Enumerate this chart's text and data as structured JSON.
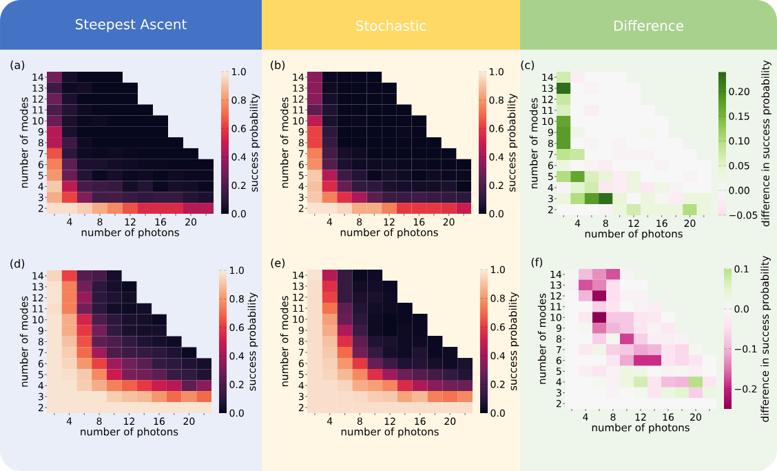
{
  "chart_data": [
    {
      "type": "heatmap",
      "title": "Steepest Ascent",
      "annotations": [
        "(a)"
      ],
      "xlabel": "number of photons",
      "ylabel": "number of modes",
      "clabel": "success probability",
      "categories": [
        null,
        "4",
        null,
        "8",
        null,
        "12",
        null,
        "16",
        null,
        "20",
        null
      ],
      "y_categories": [
        "14",
        "13",
        "12",
        "11",
        "10",
        "9",
        "8",
        "7",
        "6",
        "5",
        "4",
        "3",
        "2"
      ],
      "cells": [
        [
          0.3,
          0.05,
          0.01,
          0.01,
          0.01,
          null,
          null,
          null,
          null,
          null,
          null
        ],
        [
          0.15,
          0.03,
          0.04,
          0.01,
          0.01,
          0.01,
          null,
          null,
          null,
          null,
          null
        ],
        [
          0.28,
          0.06,
          0.01,
          0.01,
          0.01,
          0.01,
          null,
          null,
          null,
          null,
          null
        ],
        [
          0.2,
          0.08,
          0.03,
          0.01,
          0.01,
          0.01,
          0.01,
          null,
          null,
          null,
          null
        ],
        [
          0.27,
          0.06,
          0.02,
          0.03,
          0.01,
          0.01,
          0.01,
          0.01,
          null,
          null,
          null
        ],
        [
          0.45,
          0.06,
          0.01,
          0.01,
          0.01,
          0.01,
          0.01,
          0.01,
          null,
          null,
          null
        ],
        [
          0.45,
          0.15,
          0.03,
          0.01,
          0.01,
          0.01,
          0.01,
          0.01,
          0.01,
          null,
          null
        ],
        [
          0.65,
          0.1,
          0.03,
          0.02,
          0.03,
          0.02,
          0.01,
          0.01,
          0.01,
          0.01,
          null
        ],
        [
          0.75,
          0.25,
          0.06,
          0.06,
          0.04,
          0.03,
          0.02,
          0.02,
          0.01,
          0.01,
          0.01
        ],
        [
          0.8,
          0.27,
          0.08,
          0.02,
          0.05,
          0.02,
          0.03,
          0.01,
          0.03,
          0.02,
          0.02
        ],
        [
          0.92,
          0.47,
          0.18,
          0.15,
          0.13,
          0.04,
          0.08,
          0.02,
          0.05,
          0.04,
          0.02
        ],
        [
          0.85,
          0.62,
          0.33,
          0.17,
          0.18,
          0.14,
          0.11,
          0.13,
          0.13,
          0.08,
          0.06
        ],
        [
          0.97,
          0.97,
          0.93,
          0.85,
          0.77,
          0.65,
          0.55,
          0.55,
          0.55,
          0.45,
          0.45
        ]
      ],
      "clim": [
        0,
        1
      ],
      "cticks": [
        {
          "value": 0,
          "label": "0.0"
        },
        {
          "value": 0.2,
          "label": "0.2"
        },
        {
          "value": 0.4,
          "label": "0.4"
        },
        {
          "value": 0.6,
          "label": "0.6"
        },
        {
          "value": 0.8,
          "label": "0.8"
        },
        {
          "value": 1,
          "label": "1.0"
        }
      ]
    },
    {
      "type": "heatmap",
      "title": "Stochastic",
      "annotations": [
        "(b)"
      ],
      "xlabel": "number of photons",
      "ylabel": "number of modes",
      "clabel": "success probability",
      "categories": [
        null,
        "4",
        null,
        "8",
        null,
        "12",
        null,
        "16",
        null,
        "20",
        null
      ],
      "y_categories": [
        "14",
        "13",
        "12",
        "11",
        "10",
        "9",
        "8",
        "7",
        "6",
        "5",
        "4",
        "3",
        "2"
      ],
      "cells": [
        [
          0.35,
          0.02,
          0.01,
          0.01,
          0.01,
          null,
          null,
          null,
          null,
          null,
          null
        ],
        [
          0.35,
          0.03,
          0.01,
          0.01,
          0.01,
          0.01,
          null,
          null,
          null,
          null,
          null
        ],
        [
          0.35,
          0.05,
          0.01,
          0.01,
          0.01,
          0.01,
          null,
          null,
          null,
          null,
          null
        ],
        [
          0.25,
          0.07,
          0.01,
          0.01,
          0.01,
          0.01,
          0.01,
          null,
          null,
          null,
          null
        ],
        [
          0.47,
          0.06,
          0.01,
          0.02,
          0.01,
          0.01,
          0.01,
          0.01,
          null,
          null,
          null
        ],
        [
          0.62,
          0.1,
          0.01,
          0.01,
          0.01,
          0.01,
          0.02,
          0.01,
          null,
          null,
          null
        ],
        [
          0.62,
          0.13,
          0.01,
          0.01,
          0.01,
          0.01,
          0.01,
          0.01,
          0.01,
          null,
          null
        ],
        [
          0.75,
          0.17,
          0.05,
          0.03,
          0.01,
          0.01,
          0.01,
          0.01,
          0.01,
          0.01,
          null
        ],
        [
          0.78,
          0.22,
          0.06,
          0.03,
          0.03,
          0.03,
          0.02,
          0.02,
          0.01,
          0.01,
          0.01
        ],
        [
          0.92,
          0.45,
          0.15,
          0.08,
          0.02,
          0.05,
          0.03,
          0.01,
          0.03,
          0.02,
          0.02
        ],
        [
          0.9,
          0.55,
          0.27,
          0.12,
          0.1,
          0.06,
          0.05,
          0.04,
          0.04,
          0.06,
          0.01
        ],
        [
          0.92,
          0.75,
          0.57,
          0.42,
          0.24,
          0.15,
          0.14,
          0.16,
          0.14,
          0.12,
          0.1
        ],
        [
          0.98,
          0.98,
          0.95,
          0.85,
          0.85,
          0.75,
          0.6,
          0.6,
          0.6,
          0.58,
          0.5
        ]
      ],
      "clim": [
        0,
        1
      ],
      "cticks": [
        {
          "value": 0,
          "label": "0.0"
        },
        {
          "value": 0.2,
          "label": "0.2"
        },
        {
          "value": 0.4,
          "label": "0.4"
        },
        {
          "value": 0.6,
          "label": "0.6"
        },
        {
          "value": 0.8,
          "label": "0.8"
        },
        {
          "value": 1,
          "label": "1.0"
        }
      ]
    },
    {
      "type": "heatmap",
      "title": "Difference",
      "annotations": [
        "(c)"
      ],
      "xlabel": "number of photons",
      "ylabel": "number of modes",
      "clabel": "difference in success probability",
      "categories": [
        null,
        "4",
        null,
        "8",
        null,
        "12",
        null,
        "16",
        null,
        "20",
        null
      ],
      "y_categories": [
        "14",
        "13",
        "12",
        "11",
        "10",
        "9",
        "8",
        "7",
        "6",
        "5",
        "4",
        "3",
        "2"
      ],
      "cells": [
        [
          0.07,
          -0.02,
          0.0,
          0.0,
          0.0,
          null,
          null,
          null,
          null,
          null,
          null
        ],
        [
          0.23,
          0.0,
          -0.01,
          0.0,
          0.0,
          0.0,
          null,
          null,
          null,
          null,
          null
        ],
        [
          0.08,
          0.0,
          0.0,
          0.0,
          0.0,
          0.0,
          null,
          null,
          null,
          null,
          null
        ],
        [
          0.06,
          0.0,
          -0.02,
          0.0,
          0.0,
          0.0,
          0.0,
          null,
          null,
          null,
          null
        ],
        [
          0.17,
          0.0,
          0.0,
          0.0,
          0.0,
          0.0,
          0.0,
          0.0,
          null,
          null,
          null
        ],
        [
          0.18,
          0.02,
          0.0,
          0.0,
          0.0,
          0.0,
          0.01,
          0.0,
          null,
          null,
          null
        ],
        [
          0.18,
          0.0,
          -0.01,
          0.0,
          -0.01,
          0.0,
          0.0,
          0.0,
          0.0,
          null,
          null
        ],
        [
          0.09,
          0.08,
          0.0,
          0.0,
          -0.01,
          -0.01,
          -0.01,
          0.0,
          0.0,
          0.0,
          null
        ],
        [
          0.03,
          0.0,
          -0.01,
          -0.02,
          0.0,
          0.0,
          0.0,
          -0.01,
          0.0,
          0.0,
          0.0
        ],
        [
          0.1,
          0.17,
          0.06,
          0.04,
          -0.02,
          0.03,
          0.0,
          0.0,
          0.0,
          -0.01,
          0.0
        ],
        [
          -0.01,
          0.05,
          0.07,
          -0.03,
          -0.02,
          0.03,
          -0.03,
          0.02,
          -0.01,
          0.0,
          0.0
        ],
        [
          0.03,
          0.1,
          0.18,
          0.23,
          0.04,
          0.0,
          0.03,
          0.01,
          -0.02,
          0.03,
          0.03
        ],
        [
          0.0,
          0.0,
          0.0,
          -0.01,
          0.03,
          0.07,
          0.03,
          0.03,
          0.03,
          0.1,
          0.03
        ]
      ],
      "clim": [
        -0.05,
        0.24
      ],
      "cticks": [
        {
          "value": -0.05,
          "label": "−0.05"
        },
        {
          "value": 0,
          "label": "0.00"
        },
        {
          "value": 0.05,
          "label": "0.05"
        },
        {
          "value": 0.1,
          "label": "0.10"
        },
        {
          "value": 0.15,
          "label": "0.15"
        },
        {
          "value": 0.2,
          "label": "0.20"
        }
      ]
    },
    {
      "type": "heatmap",
      "annotations": [
        "(d)"
      ],
      "xlabel": "number of photons",
      "ylabel": "number of modes",
      "clabel": "success probability",
      "categories": [
        null,
        "4",
        null,
        "8",
        null,
        "12",
        null,
        "16",
        null,
        "20",
        null
      ],
      "y_categories": [
        "14",
        "13",
        "12",
        "11",
        "10",
        "9",
        "8",
        "7",
        "6",
        "5",
        "4",
        "3",
        "2"
      ],
      "cells": [
        [
          0.95,
          0.62,
          0.22,
          0.18,
          0.05,
          null,
          null,
          null,
          null,
          null,
          null
        ],
        [
          0.98,
          0.75,
          0.3,
          0.1,
          0.05,
          0.02,
          null,
          null,
          null,
          null,
          null
        ],
        [
          0.98,
          0.75,
          0.37,
          0.1,
          0.07,
          0.04,
          null,
          null,
          null,
          null,
          null
        ],
        [
          0.97,
          0.75,
          0.3,
          0.1,
          0.04,
          0.03,
          0.04,
          null,
          null,
          null,
          null
        ],
        [
          0.98,
          0.85,
          0.53,
          0.2,
          0.1,
          0.06,
          0.05,
          0.02,
          null,
          null,
          null
        ],
        [
          0.98,
          0.85,
          0.6,
          0.3,
          0.12,
          0.06,
          0.05,
          0.05,
          null,
          null,
          null
        ],
        [
          0.98,
          0.9,
          0.65,
          0.25,
          0.2,
          0.12,
          0.07,
          0.05,
          0.03,
          null,
          null
        ],
        [
          0.98,
          0.93,
          0.7,
          0.4,
          0.2,
          0.15,
          0.13,
          0.1,
          0.07,
          0.02,
          null
        ],
        [
          0.98,
          0.95,
          0.8,
          0.62,
          0.4,
          0.3,
          0.24,
          0.13,
          0.1,
          0.07,
          0.05
        ],
        [
          0.98,
          0.97,
          0.92,
          0.77,
          0.5,
          0.32,
          0.3,
          0.24,
          0.14,
          0.12,
          0.07
        ],
        [
          0.98,
          0.98,
          0.93,
          0.85,
          0.75,
          0.68,
          0.6,
          0.5,
          0.45,
          0.25,
          0.35
        ],
        [
          0.98,
          0.98,
          0.98,
          0.98,
          0.93,
          0.9,
          0.88,
          0.8,
          0.7,
          0.78,
          0.7
        ],
        [
          0.98,
          0.98,
          0.98,
          0.98,
          0.98,
          0.98,
          0.98,
          0.98,
          0.98,
          0.98,
          0.98
        ]
      ],
      "clim": [
        0,
        1
      ],
      "cticks": [
        {
          "value": 0,
          "label": "0.0"
        },
        {
          "value": 0.2,
          "label": "0.2"
        },
        {
          "value": 0.4,
          "label": "0.4"
        },
        {
          "value": 0.6,
          "label": "0.6"
        },
        {
          "value": 0.8,
          "label": "0.8"
        },
        {
          "value": 1,
          "label": "1.0"
        }
      ]
    },
    {
      "type": "heatmap",
      "annotations": [
        "(e)"
      ],
      "xlabel": "number of photons",
      "ylabel": "number of modes",
      "clabel": "success probability",
      "categories": [
        null,
        "4",
        null,
        "8",
        null,
        "12",
        null,
        "16",
        null,
        "20",
        null
      ],
      "y_categories": [
        "14",
        "13",
        "12",
        "11",
        "10",
        "9",
        "8",
        "7",
        "6",
        "5",
        "4",
        "3",
        "2"
      ],
      "cells": [
        [
          0.98,
          0.45,
          0.13,
          0.02,
          0.03,
          null,
          null,
          null,
          null,
          null,
          null
        ],
        [
          0.97,
          0.57,
          0.13,
          0.04,
          0.04,
          0.02,
          null,
          null,
          null,
          null,
          null
        ],
        [
          0.97,
          0.62,
          0.13,
          0.06,
          0.06,
          0.03,
          null,
          null,
          null,
          null,
          null
        ],
        [
          0.97,
          0.72,
          0.25,
          0.08,
          0.04,
          0.03,
          0.02,
          null,
          null,
          null,
          null
        ],
        [
          0.97,
          0.82,
          0.27,
          0.1,
          0.03,
          0.01,
          0.02,
          0.02,
          null,
          null,
          null
        ],
        [
          0.97,
          0.85,
          0.43,
          0.15,
          0.03,
          0.01,
          0.03,
          0.02,
          null,
          null,
          null
        ],
        [
          0.97,
          0.9,
          0.57,
          0.25,
          0.07,
          0.06,
          0.03,
          0.03,
          0.02,
          null,
          null
        ],
        [
          0.97,
          0.92,
          0.7,
          0.3,
          0.13,
          0.05,
          0.03,
          0.07,
          0.02,
          0.03,
          null
        ],
        [
          0.97,
          0.94,
          0.8,
          0.6,
          0.27,
          0.15,
          0.07,
          0.08,
          0.05,
          0.03,
          0.06
        ],
        [
          0.97,
          0.95,
          0.88,
          0.77,
          0.57,
          0.4,
          0.28,
          0.22,
          0.17,
          0.12,
          0.08
        ],
        [
          0.97,
          0.97,
          0.95,
          0.85,
          0.82,
          0.76,
          0.55,
          0.43,
          0.35,
          0.3,
          0.28
        ],
        [
          0.97,
          0.97,
          0.97,
          0.96,
          0.93,
          0.92,
          0.83,
          0.88,
          0.75,
          0.72,
          0.77
        ],
        [
          0.97,
          0.97,
          0.97,
          0.97,
          0.97,
          0.97,
          0.97,
          0.97,
          0.97,
          0.97,
          0.97
        ]
      ],
      "clim": [
        0,
        1
      ],
      "cticks": [
        {
          "value": 0,
          "label": "0.0"
        },
        {
          "value": 0.2,
          "label": "0.2"
        },
        {
          "value": 0.4,
          "label": "0.4"
        },
        {
          "value": 0.6,
          "label": "0.6"
        },
        {
          "value": 0.8,
          "label": "0.8"
        },
        {
          "value": 1,
          "label": "1.0"
        }
      ]
    },
    {
      "type": "heatmap",
      "annotations": [
        "(f)"
      ],
      "xlabel": "number of photons",
      "ylabel": "number of modes",
      "clabel": "difference in success probability",
      "categories": [
        null,
        "4",
        null,
        "8",
        null,
        "12",
        null,
        "16",
        null,
        "20",
        null
      ],
      "y_categories": [
        "14",
        "13",
        "12",
        "11",
        "10",
        "9",
        "8",
        "7",
        "6",
        "5",
        "4",
        "3",
        "2"
      ],
      "cells": [
        [
          0.01,
          -0.09,
          -0.13,
          -0.17,
          -0.01,
          null,
          null,
          null,
          null,
          null,
          null
        ],
        [
          -0.01,
          -0.17,
          -0.14,
          -0.05,
          0.0,
          0.0,
          null,
          null,
          null,
          null,
          null
        ],
        [
          0.0,
          -0.1,
          -0.24,
          -0.05,
          -0.01,
          -0.01,
          null,
          null,
          null,
          null,
          null
        ],
        [
          0.0,
          0.0,
          -0.07,
          -0.04,
          0.0,
          -0.01,
          -0.02,
          null,
          null,
          null,
          null
        ],
        [
          0.0,
          -0.03,
          -0.25,
          -0.08,
          -0.08,
          -0.04,
          -0.03,
          0.0,
          null,
          null,
          null
        ],
        [
          0.0,
          0.01,
          -0.15,
          -0.1,
          -0.08,
          -0.04,
          -0.01,
          -0.03,
          null,
          null,
          null
        ],
        [
          0.0,
          0.0,
          -0.07,
          0.01,
          -0.18,
          -0.07,
          -0.02,
          -0.02,
          -0.01,
          null,
          null
        ],
        [
          0.0,
          -0.03,
          0.02,
          -0.07,
          -0.08,
          -0.11,
          -0.1,
          -0.04,
          -0.06,
          0.01,
          null
        ],
        [
          0.0,
          0.0,
          0.0,
          -0.04,
          -0.11,
          -0.19,
          -0.19,
          -0.04,
          -0.06,
          -0.04,
          0.0
        ],
        [
          0.0,
          -0.02,
          -0.04,
          -0.01,
          0.03,
          0.02,
          0.0,
          -0.01,
          0.01,
          -0.02,
          0.0
        ],
        [
          0.0,
          0.0,
          0.01,
          -0.01,
          0.03,
          0.07,
          -0.04,
          -0.09,
          -0.1,
          0.1,
          -0.04
        ],
        [
          0.0,
          0.0,
          0.0,
          -0.01,
          0.0,
          0.01,
          -0.04,
          0.03,
          0.05,
          -0.07,
          0.03
        ],
        [
          0.0,
          0.0,
          0.0,
          0.0,
          0.0,
          0.0,
          0.0,
          0.0,
          0.0,
          0.0,
          0.0
        ]
      ],
      "clim": [
        -0.25,
        0.1
      ],
      "cticks": [
        {
          "value": -0.2,
          "label": "−0.2"
        },
        {
          "value": -0.1,
          "label": "−0.1"
        },
        {
          "value": 0,
          "label": "0.0"
        },
        {
          "value": 0.1,
          "label": "0.1"
        }
      ]
    }
  ]
}
